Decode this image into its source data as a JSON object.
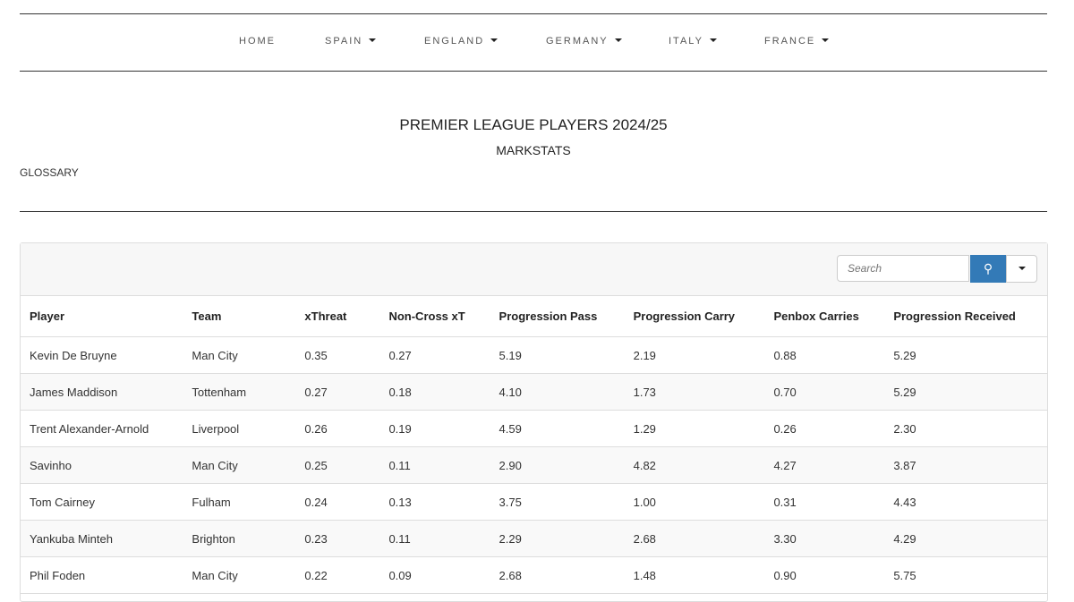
{
  "nav": {
    "items": [
      {
        "label": "HOME"
      },
      {
        "label": "SPAIN"
      },
      {
        "label": "ENGLAND"
      },
      {
        "label": "GERMANY"
      },
      {
        "label": "ITALY"
      },
      {
        "label": "FRANCE"
      }
    ]
  },
  "header": {
    "title": "PREMIER LEAGUE PLAYERS 2024/25",
    "subtitle": "MARKSTATS",
    "glossary": "GLOSSARY"
  },
  "search": {
    "placeholder": "Search",
    "icon": "search-icon",
    "button_color": "#337ab7"
  },
  "table": {
    "columns": [
      "Player",
      "Team",
      "xThreat",
      "Non-Cross xT",
      "Progression Pass",
      "Progression Carry",
      "Penbox Carries",
      "Progression Received"
    ],
    "rows": [
      [
        "Kevin De Bruyne",
        "Man City",
        "0.35",
        "0.27",
        "5.19",
        "2.19",
        "0.88",
        "5.29"
      ],
      [
        "James Maddison",
        "Tottenham",
        "0.27",
        "0.18",
        "4.10",
        "1.73",
        "0.70",
        "5.29"
      ],
      [
        "Trent Alexander-Arnold",
        "Liverpool",
        "0.26",
        "0.19",
        "4.59",
        "1.29",
        "0.26",
        "2.30"
      ],
      [
        "Savinho",
        "Man City",
        "0.25",
        "0.11",
        "2.90",
        "4.82",
        "4.27",
        "3.87"
      ],
      [
        "Tom Cairney",
        "Fulham",
        "0.24",
        "0.13",
        "3.75",
        "1.00",
        "0.31",
        "4.43"
      ],
      [
        "Yankuba Minteh",
        "Brighton",
        "0.23",
        "0.11",
        "2.29",
        "2.68",
        "3.30",
        "4.29"
      ],
      [
        "Phil Foden",
        "Man City",
        "0.22",
        "0.09",
        "2.68",
        "1.48",
        "0.90",
        "5.75"
      ]
    ]
  }
}
